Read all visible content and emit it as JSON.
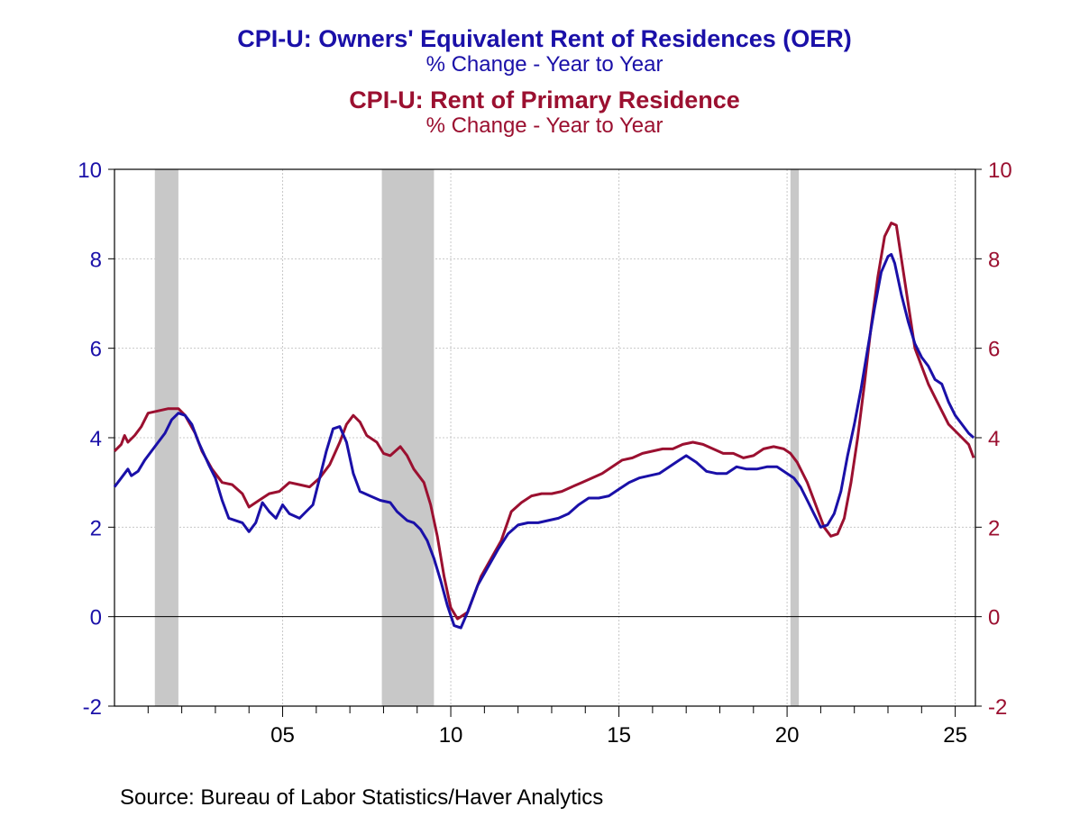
{
  "titles": {
    "series1_title": "CPI-U: Owners' Equivalent Rent of Residences (OER)",
    "series1_subtitle": "% Change - Year to Year",
    "series2_title": "CPI-U: Rent of Primary Residence",
    "series2_subtitle": "% Change - Year to Year"
  },
  "source": "Source:  Bureau of Labor Statistics/Haver Analytics",
  "colors": {
    "oer": "#1a10a8",
    "rent": "#9b1030",
    "recession": "#c8c8c8",
    "grid": "#c8c8c8"
  },
  "chart_data": {
    "type": "line",
    "x_range": [
      2000.0,
      2025.6
    ],
    "ylim": [
      -2,
      10
    ],
    "y_ticks": [
      -2,
      0,
      2,
      4,
      6,
      8,
      10
    ],
    "x_ticks": [
      {
        "year": 2005,
        "label": "05"
      },
      {
        "year": 2010,
        "label": "10"
      },
      {
        "year": 2015,
        "label": "15"
      },
      {
        "year": 2020,
        "label": "20"
      },
      {
        "year": 2025,
        "label": "25"
      }
    ],
    "grid": true,
    "recessions": [
      [
        2001.2,
        2001.9
      ],
      [
        2007.95,
        2009.5
      ],
      [
        2020.1,
        2020.35
      ]
    ],
    "series": [
      {
        "name": "CPI-U: Owners' Equivalent Rent of Residences (OER)",
        "points": [
          [
            2000.0,
            2.9
          ],
          [
            2000.2,
            3.1
          ],
          [
            2000.4,
            3.3
          ],
          [
            2000.5,
            3.15
          ],
          [
            2000.7,
            3.25
          ],
          [
            2000.9,
            3.5
          ],
          [
            2001.2,
            3.8
          ],
          [
            2001.5,
            4.1
          ],
          [
            2001.7,
            4.4
          ],
          [
            2001.9,
            4.55
          ],
          [
            2002.1,
            4.5
          ],
          [
            2002.3,
            4.3
          ],
          [
            2002.5,
            3.9
          ],
          [
            2002.8,
            3.4
          ],
          [
            2003.0,
            3.1
          ],
          [
            2003.2,
            2.6
          ],
          [
            2003.4,
            2.2
          ],
          [
            2003.6,
            2.15
          ],
          [
            2003.8,
            2.1
          ],
          [
            2004.0,
            1.9
          ],
          [
            2004.2,
            2.1
          ],
          [
            2004.4,
            2.55
          ],
          [
            2004.6,
            2.35
          ],
          [
            2004.8,
            2.2
          ],
          [
            2005.0,
            2.5
          ],
          [
            2005.2,
            2.3
          ],
          [
            2005.5,
            2.2
          ],
          [
            2005.7,
            2.35
          ],
          [
            2005.9,
            2.5
          ],
          [
            2006.1,
            3.1
          ],
          [
            2006.3,
            3.7
          ],
          [
            2006.5,
            4.2
          ],
          [
            2006.7,
            4.25
          ],
          [
            2006.9,
            3.9
          ],
          [
            2007.1,
            3.2
          ],
          [
            2007.3,
            2.8
          ],
          [
            2007.6,
            2.7
          ],
          [
            2007.9,
            2.6
          ],
          [
            2008.2,
            2.55
          ],
          [
            2008.4,
            2.35
          ],
          [
            2008.7,
            2.15
          ],
          [
            2008.9,
            2.1
          ],
          [
            2009.1,
            1.95
          ],
          [
            2009.3,
            1.7
          ],
          [
            2009.5,
            1.3
          ],
          [
            2009.7,
            0.8
          ],
          [
            2009.9,
            0.25
          ],
          [
            2010.1,
            -0.2
          ],
          [
            2010.3,
            -0.25
          ],
          [
            2010.5,
            0.1
          ],
          [
            2010.8,
            0.7
          ],
          [
            2011.1,
            1.1
          ],
          [
            2011.4,
            1.5
          ],
          [
            2011.7,
            1.85
          ],
          [
            2012.0,
            2.05
          ],
          [
            2012.3,
            2.1
          ],
          [
            2012.6,
            2.1
          ],
          [
            2012.9,
            2.15
          ],
          [
            2013.2,
            2.2
          ],
          [
            2013.5,
            2.3
          ],
          [
            2013.8,
            2.5
          ],
          [
            2014.1,
            2.65
          ],
          [
            2014.4,
            2.65
          ],
          [
            2014.7,
            2.7
          ],
          [
            2015.0,
            2.85
          ],
          [
            2015.3,
            3.0
          ],
          [
            2015.6,
            3.1
          ],
          [
            2015.9,
            3.15
          ],
          [
            2016.2,
            3.2
          ],
          [
            2016.5,
            3.35
          ],
          [
            2016.8,
            3.5
          ],
          [
            2017.0,
            3.6
          ],
          [
            2017.3,
            3.45
          ],
          [
            2017.6,
            3.25
          ],
          [
            2017.9,
            3.2
          ],
          [
            2018.2,
            3.2
          ],
          [
            2018.5,
            3.35
          ],
          [
            2018.8,
            3.3
          ],
          [
            2019.1,
            3.3
          ],
          [
            2019.4,
            3.35
          ],
          [
            2019.7,
            3.35
          ],
          [
            2020.0,
            3.2
          ],
          [
            2020.2,
            3.1
          ],
          [
            2020.4,
            2.9
          ],
          [
            2020.6,
            2.6
          ],
          [
            2020.8,
            2.3
          ],
          [
            2021.0,
            2.0
          ],
          [
            2021.2,
            2.05
          ],
          [
            2021.4,
            2.3
          ],
          [
            2021.6,
            2.8
          ],
          [
            2021.8,
            3.6
          ],
          [
            2022.0,
            4.3
          ],
          [
            2022.2,
            5.1
          ],
          [
            2022.4,
            6.0
          ],
          [
            2022.6,
            6.9
          ],
          [
            2022.8,
            7.7
          ],
          [
            2023.0,
            8.05
          ],
          [
            2023.1,
            8.1
          ],
          [
            2023.2,
            7.9
          ],
          [
            2023.4,
            7.2
          ],
          [
            2023.6,
            6.6
          ],
          [
            2023.8,
            6.1
          ],
          [
            2024.0,
            5.8
          ],
          [
            2024.2,
            5.6
          ],
          [
            2024.4,
            5.3
          ],
          [
            2024.6,
            5.2
          ],
          [
            2024.8,
            4.8
          ],
          [
            2025.0,
            4.5
          ],
          [
            2025.2,
            4.3
          ],
          [
            2025.4,
            4.1
          ],
          [
            2025.55,
            4.0
          ]
        ]
      },
      {
        "name": "CPI-U: Rent of Primary Residence",
        "points": [
          [
            2000.0,
            3.7
          ],
          [
            2000.2,
            3.85
          ],
          [
            2000.3,
            4.05
          ],
          [
            2000.4,
            3.9
          ],
          [
            2000.6,
            4.05
          ],
          [
            2000.8,
            4.25
          ],
          [
            2001.0,
            4.55
          ],
          [
            2001.3,
            4.6
          ],
          [
            2001.6,
            4.65
          ],
          [
            2001.9,
            4.65
          ],
          [
            2002.1,
            4.5
          ],
          [
            2002.4,
            4.1
          ],
          [
            2002.6,
            3.7
          ],
          [
            2002.9,
            3.3
          ],
          [
            2003.2,
            3.0
          ],
          [
            2003.5,
            2.95
          ],
          [
            2003.8,
            2.75
          ],
          [
            2004.0,
            2.45
          ],
          [
            2004.3,
            2.6
          ],
          [
            2004.6,
            2.75
          ],
          [
            2004.9,
            2.8
          ],
          [
            2005.2,
            3.0
          ],
          [
            2005.5,
            2.95
          ],
          [
            2005.8,
            2.9
          ],
          [
            2006.1,
            3.1
          ],
          [
            2006.4,
            3.4
          ],
          [
            2006.7,
            3.9
          ],
          [
            2006.9,
            4.3
          ],
          [
            2007.1,
            4.5
          ],
          [
            2007.3,
            4.35
          ],
          [
            2007.5,
            4.05
          ],
          [
            2007.8,
            3.9
          ],
          [
            2008.0,
            3.65
          ],
          [
            2008.2,
            3.6
          ],
          [
            2008.5,
            3.8
          ],
          [
            2008.7,
            3.6
          ],
          [
            2008.9,
            3.3
          ],
          [
            2009.2,
            3.0
          ],
          [
            2009.4,
            2.5
          ],
          [
            2009.6,
            1.8
          ],
          [
            2009.8,
            0.9
          ],
          [
            2010.0,
            0.2
          ],
          [
            2010.2,
            -0.05
          ],
          [
            2010.5,
            0.1
          ],
          [
            2010.7,
            0.5
          ],
          [
            2010.9,
            0.9
          ],
          [
            2011.2,
            1.3
          ],
          [
            2011.5,
            1.7
          ],
          [
            2011.8,
            2.35
          ],
          [
            2012.1,
            2.55
          ],
          [
            2012.4,
            2.7
          ],
          [
            2012.7,
            2.75
          ],
          [
            2013.0,
            2.75
          ],
          [
            2013.3,
            2.8
          ],
          [
            2013.6,
            2.9
          ],
          [
            2013.9,
            3.0
          ],
          [
            2014.2,
            3.1
          ],
          [
            2014.5,
            3.2
          ],
          [
            2014.8,
            3.35
          ],
          [
            2015.1,
            3.5
          ],
          [
            2015.4,
            3.55
          ],
          [
            2015.7,
            3.65
          ],
          [
            2016.0,
            3.7
          ],
          [
            2016.3,
            3.75
          ],
          [
            2016.6,
            3.75
          ],
          [
            2016.9,
            3.85
          ],
          [
            2017.2,
            3.9
          ],
          [
            2017.5,
            3.85
          ],
          [
            2017.8,
            3.75
          ],
          [
            2018.1,
            3.65
          ],
          [
            2018.4,
            3.65
          ],
          [
            2018.7,
            3.55
          ],
          [
            2019.0,
            3.6
          ],
          [
            2019.3,
            3.75
          ],
          [
            2019.6,
            3.8
          ],
          [
            2019.9,
            3.75
          ],
          [
            2020.1,
            3.65
          ],
          [
            2020.3,
            3.45
          ],
          [
            2020.6,
            3.0
          ],
          [
            2020.9,
            2.4
          ],
          [
            2021.1,
            2.0
          ],
          [
            2021.3,
            1.8
          ],
          [
            2021.5,
            1.85
          ],
          [
            2021.7,
            2.2
          ],
          [
            2021.9,
            3.0
          ],
          [
            2022.1,
            4.0
          ],
          [
            2022.3,
            5.2
          ],
          [
            2022.5,
            6.5
          ],
          [
            2022.7,
            7.6
          ],
          [
            2022.9,
            8.5
          ],
          [
            2023.1,
            8.8
          ],
          [
            2023.25,
            8.75
          ],
          [
            2023.4,
            8.0
          ],
          [
            2023.6,
            7.0
          ],
          [
            2023.8,
            6.0
          ],
          [
            2024.0,
            5.6
          ],
          [
            2024.2,
            5.2
          ],
          [
            2024.4,
            4.9
          ],
          [
            2024.6,
            4.6
          ],
          [
            2024.8,
            4.3
          ],
          [
            2025.0,
            4.15
          ],
          [
            2025.2,
            4.0
          ],
          [
            2025.4,
            3.85
          ],
          [
            2025.55,
            3.55
          ]
        ]
      }
    ]
  }
}
